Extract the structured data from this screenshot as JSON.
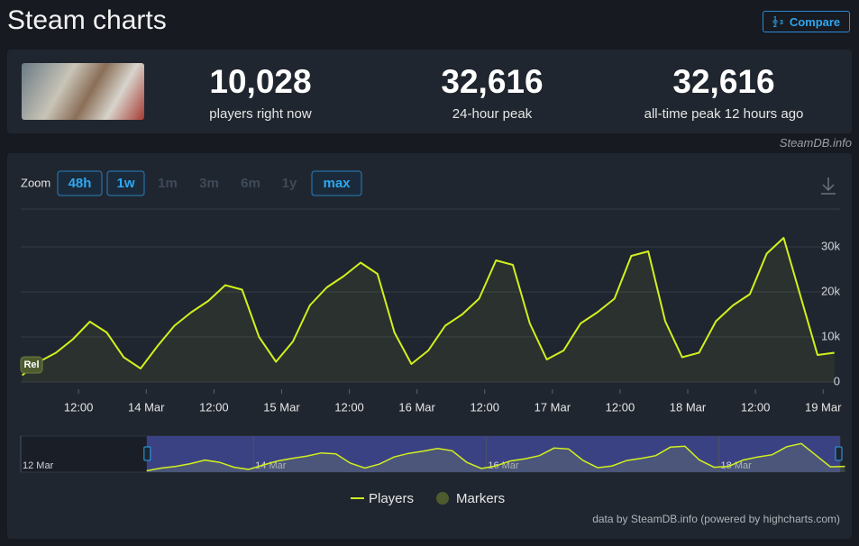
{
  "header": {
    "title": "Steam charts",
    "compare": "Compare"
  },
  "stats": [
    {
      "value": "10,028",
      "label": "players right now"
    },
    {
      "value": "32,616",
      "label": "24-hour peak"
    },
    {
      "value": "32,616",
      "label": "all-time peak 12 hours ago"
    }
  ],
  "source": "SteamDB.info",
  "zoom": {
    "label": "Zoom",
    "options": [
      {
        "text": "48h",
        "enabled": true
      },
      {
        "text": "1w",
        "enabled": true
      },
      {
        "text": "1m",
        "enabled": false
      },
      {
        "text": "3m",
        "enabled": false
      },
      {
        "text": "6m",
        "enabled": false
      },
      {
        "text": "1y",
        "enabled": false
      },
      {
        "text": "max",
        "enabled": true
      }
    ]
  },
  "chart_data": {
    "type": "line",
    "x": [
      "13 Mar 02:00",
      "13 Mar 05:00",
      "13 Mar 08:00",
      "13 Mar 11:00",
      "13 Mar 14:00",
      "13 Mar 17:00",
      "13 Mar 20:00",
      "13 Mar 23:00",
      "14 Mar 02:00",
      "14 Mar 05:00",
      "14 Mar 08:00",
      "14 Mar 11:00",
      "14 Mar 14:00",
      "14 Mar 17:00",
      "14 Mar 20:00",
      "14 Mar 23:00",
      "15 Mar 02:00",
      "15 Mar 05:00",
      "15 Mar 08:00",
      "15 Mar 11:00",
      "15 Mar 14:00",
      "15 Mar 17:00",
      "15 Mar 20:00",
      "15 Mar 23:00",
      "16 Mar 02:00",
      "16 Mar 05:00",
      "16 Mar 08:00",
      "16 Mar 11:00",
      "16 Mar 14:00",
      "16 Mar 17:00",
      "16 Mar 20:00",
      "16 Mar 23:00",
      "17 Mar 02:00",
      "17 Mar 05:00",
      "17 Mar 08:00",
      "17 Mar 11:00",
      "17 Mar 14:00",
      "17 Mar 17:00",
      "17 Mar 20:00",
      "17 Mar 23:00",
      "18 Mar 02:00",
      "18 Mar 05:00",
      "18 Mar 08:00",
      "18 Mar 11:00",
      "18 Mar 14:00",
      "18 Mar 17:00",
      "18 Mar 20:00",
      "18 Mar 23:00",
      "19 Mar 02:00"
    ],
    "series": [
      {
        "name": "Players",
        "color": "#d2f01e",
        "values": [
          1500,
          4500,
          6500,
          9500,
          13400,
          11000,
          5500,
          3000,
          8000,
          12500,
          15500,
          18000,
          21500,
          20500,
          10000,
          4500,
          9000,
          17000,
          21000,
          23500,
          26500,
          24000,
          11000,
          4000,
          7000,
          12500,
          15000,
          18500,
          27000,
          26000,
          13000,
          5000,
          7000,
          13000,
          15500,
          18500,
          28000,
          29000,
          13500,
          5500,
          6500,
          13500,
          17000,
          19500,
          28500,
          32000,
          19000,
          6000,
          6500
        ]
      },
      {
        "name": "Markers",
        "color": "#4d5b2f",
        "x": [
          "13 Mar 01:45"
        ],
        "labels": [
          "Rel"
        ]
      }
    ],
    "xlim": [
      "13 Mar 01:45",
      "19 Mar 03:00"
    ],
    "xticks": [
      {
        "value": "13 Mar 12:00",
        "label": "12:00"
      },
      {
        "value": "14 Mar 00:00",
        "label": "14 Mar"
      },
      {
        "value": "14 Mar 12:00",
        "label": "12:00"
      },
      {
        "value": "15 Mar 00:00",
        "label": "15 Mar"
      },
      {
        "value": "15 Mar 12:00",
        "label": "12:00"
      },
      {
        "value": "16 Mar 00:00",
        "label": "16 Mar"
      },
      {
        "value": "16 Mar 12:00",
        "label": "12:00"
      },
      {
        "value": "17 Mar 00:00",
        "label": "17 Mar"
      },
      {
        "value": "17 Mar 12:00",
        "label": "12:00"
      },
      {
        "value": "18 Mar 00:00",
        "label": "18 Mar"
      },
      {
        "value": "18 Mar 12:00",
        "label": "12:00"
      },
      {
        "value": "19 Mar 00:00",
        "label": "19 Mar"
      }
    ],
    "ylim": [
      0,
      38400
    ],
    "yticks": [
      0,
      {
        "value": 10000,
        "label": "10k"
      },
      {
        "value": 20000,
        "label": "20k"
      },
      {
        "value": 30000,
        "label": "30k"
      }
    ],
    "grid": true,
    "navigator": {
      "xlim": [
        "12 Mar 00:00",
        "19 Mar 01:00"
      ],
      "xticks": [
        {
          "value": "12 Mar 00:00",
          "label": "12 Mar"
        },
        {
          "value": "14 Mar 00:00",
          "label": "14 Mar"
        },
        {
          "value": "16 Mar 00:00",
          "label": "16 Mar"
        },
        {
          "value": "18 Mar 00:00",
          "label": "18 Mar"
        }
      ],
      "selection_color": "#3b4283"
    }
  },
  "credits": "data by SteamDB.info (powered by highcharts.com)"
}
